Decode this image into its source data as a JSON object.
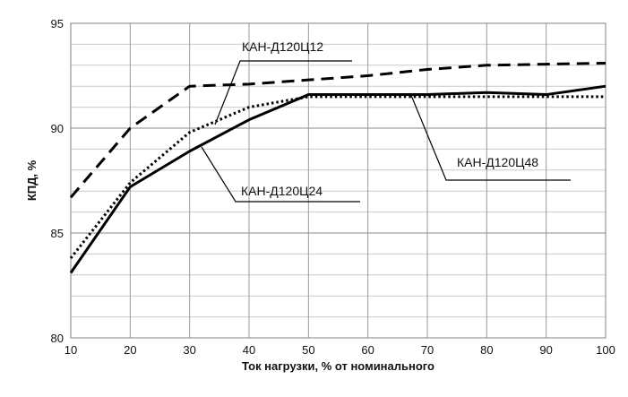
{
  "chart_data": {
    "type": "line",
    "xlabel": "Ток нагрузки, % от номинального",
    "ylabel": "КПД, %",
    "xlim": [
      10,
      100
    ],
    "ylim": [
      80,
      95
    ],
    "x_ticks": [
      10,
      20,
      30,
      40,
      50,
      60,
      70,
      80,
      90,
      100
    ],
    "y_ticks": [
      80,
      85,
      90,
      95
    ],
    "grid": true,
    "minor_y_step": 1,
    "series": [
      {
        "name": "КАН-Д120Ц12",
        "style": "dashed",
        "color": "#000000",
        "x": [
          10,
          20,
          30,
          40,
          50,
          60,
          70,
          80,
          90,
          100
        ],
        "y": [
          86.7,
          90.0,
          92.0,
          92.1,
          92.3,
          92.5,
          92.8,
          93.0,
          93.05,
          93.1
        ]
      },
      {
        "name": "КАН-Д120Ц24",
        "style": "solid",
        "color": "#000000",
        "x": [
          10,
          20,
          30,
          40,
          50,
          60,
          70,
          80,
          90,
          100
        ],
        "y": [
          83.1,
          87.2,
          88.9,
          90.4,
          91.6,
          91.6,
          91.6,
          91.7,
          91.6,
          92.0
        ]
      },
      {
        "name": "КАН-Д120Ц48",
        "style": "dotted",
        "color": "#000000",
        "x": [
          10,
          20,
          30,
          40,
          50,
          60,
          70,
          80,
          90,
          100
        ],
        "y": [
          83.8,
          87.4,
          89.8,
          91.0,
          91.5,
          91.5,
          91.5,
          91.5,
          91.5,
          91.5
        ]
      }
    ],
    "annotations": [
      {
        "text": "КАН-Д120Ц12",
        "series": 0
      },
      {
        "text": "КАН-Д120Ц24",
        "series": 1
      },
      {
        "text": "КАН-Д120Ц48",
        "series": 2
      }
    ]
  }
}
